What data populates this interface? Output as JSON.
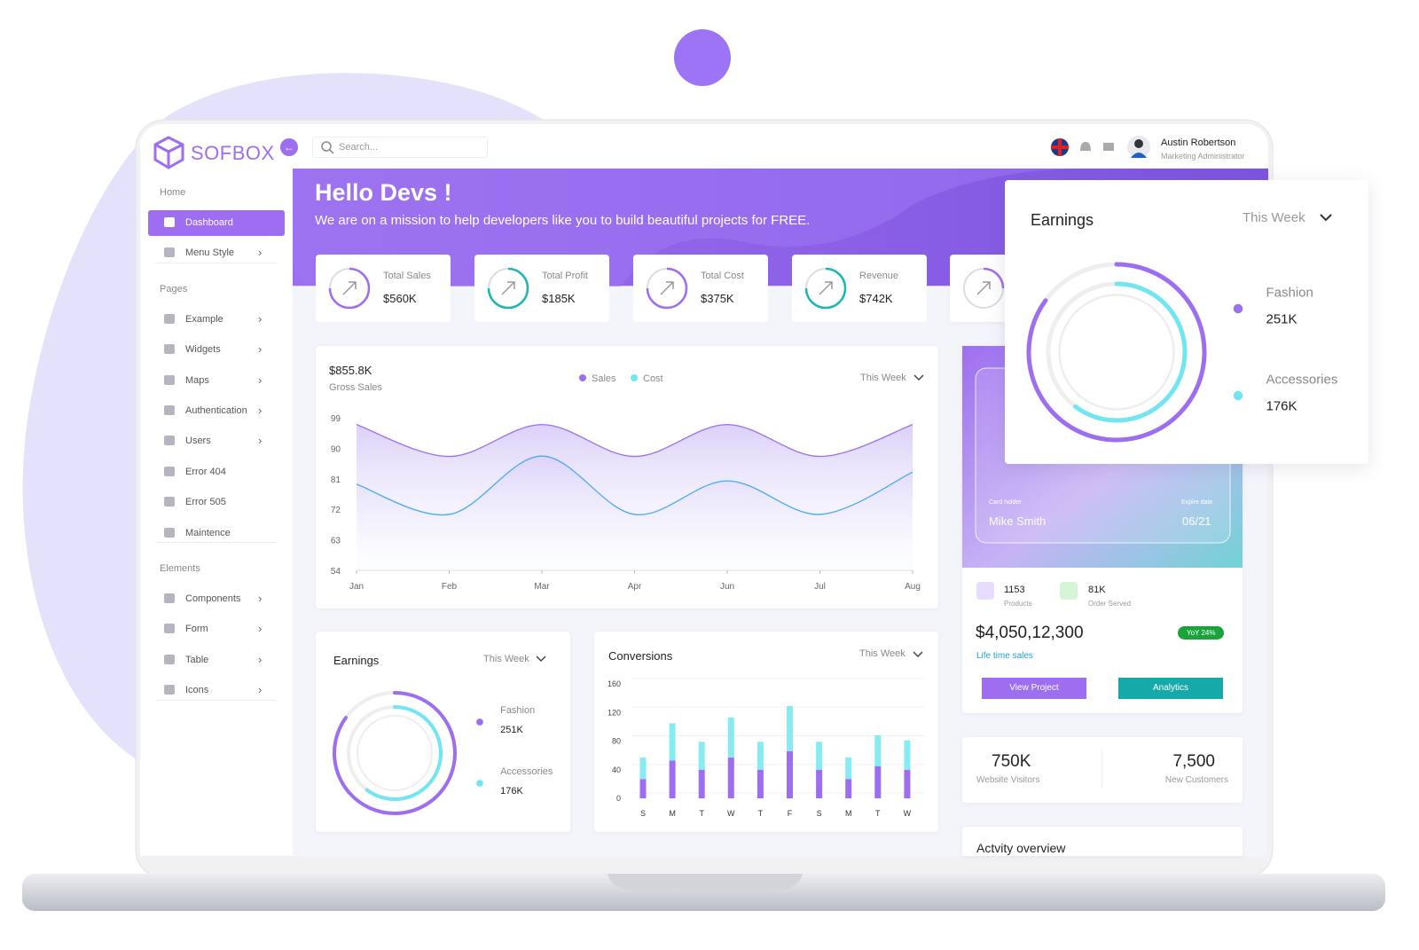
{
  "brand": "SOFBOX",
  "search_placeholder": "Search...",
  "user": {
    "name": "Austin Robertson",
    "role": "Marketing Administrator"
  },
  "sidebar": [
    {
      "heading": "Home",
      "items": [
        {
          "label": "Dashboard",
          "active": true
        },
        {
          "label": "Menu Style",
          "submenu": true
        }
      ]
    },
    {
      "heading": "Pages",
      "items": [
        {
          "label": "Example",
          "submenu": true
        },
        {
          "label": "Widgets",
          "submenu": true
        },
        {
          "label": "Maps",
          "submenu": true
        },
        {
          "label": "Authentication",
          "submenu": true
        },
        {
          "label": "Users",
          "submenu": true
        },
        {
          "label": "Error 404"
        },
        {
          "label": "Error 505"
        },
        {
          "label": "Maintence"
        }
      ]
    },
    {
      "heading": "Elements",
      "items": [
        {
          "label": "Components",
          "submenu": true
        },
        {
          "label": "Form",
          "submenu": true
        },
        {
          "label": "Table",
          "submenu": true
        },
        {
          "label": "Icons",
          "submenu": true
        }
      ]
    }
  ],
  "banner": {
    "title": "Hello Devs !",
    "subtitle": "We are on a mission to help developers like you to build beautiful projects for FREE."
  },
  "stat_cards": [
    {
      "label": "Total Sales",
      "value": "$560K",
      "color": "#9d6ff0"
    },
    {
      "label": "Total Profit",
      "value": "$185K",
      "color": "#1fb5b5"
    },
    {
      "label": "Total Cost",
      "value": "$375K",
      "color": "#9d6ff0"
    },
    {
      "label": "Revenue",
      "value": "$742K",
      "color": "#1fb5b5"
    }
  ],
  "gross_sales_chart": {
    "type": "line",
    "value": "$855.8K",
    "value_label": "Gross Sales",
    "period": "This Week",
    "categories": [
      "Jan",
      "Feb",
      "Mar",
      "Apr",
      "Jun",
      "Jul",
      "Aug"
    ],
    "series": [
      {
        "name": "Sales",
        "color": "#9d6ff0",
        "values": [
          97,
          87.6,
          97,
          87.6,
          97,
          87.6,
          97
        ]
      },
      {
        "name": "Cost",
        "color": "#4aa8f2",
        "values": [
          79.4,
          70.5,
          87.7,
          70.5,
          80.4,
          70.5,
          83
        ]
      }
    ],
    "ylim": [
      54,
      99
    ],
    "yticks": [
      54,
      63,
      72,
      81,
      90,
      99
    ]
  },
  "earnings_chart": {
    "type": "donut",
    "title": "Earnings",
    "period": "This Week",
    "categories": [
      "Fashion",
      "Accessories"
    ],
    "values": [
      251000,
      176000
    ],
    "value_labels": [
      "251K",
      "176K"
    ],
    "colors": [
      "#9d6ff0",
      "#72e6f0"
    ]
  },
  "conversions_chart": {
    "type": "bar",
    "stacked": true,
    "title": "Conversions",
    "period": "This Week",
    "categories": [
      "S",
      "M",
      "T",
      "W",
      "T",
      "F",
      "S",
      "M",
      "T",
      "W"
    ],
    "series": [
      {
        "color": "#9d6ff0",
        "values": [
          27,
          53,
          40,
          57,
          40,
          66,
          40,
          27,
          45,
          40
        ]
      },
      {
        "color": "#86ecf2",
        "values": [
          30,
          52,
          39,
          56,
          39,
          63,
          39,
          30,
          43,
          41
        ]
      }
    ],
    "ylim": [
      0,
      160
    ],
    "yticks": [
      0,
      40,
      80,
      120,
      160
    ]
  },
  "card": {
    "holder_label": "Card holder",
    "holder": "Mike Smith",
    "expire_label": "Expire date",
    "expire": "06/21"
  },
  "account": {
    "products": {
      "value": "1153",
      "label": "Products"
    },
    "orders": {
      "value": "81K",
      "label": "Order Served"
    },
    "lifetime_sales": "$4,050,12,300",
    "lifetime_label": "Life time sales",
    "yoy": "YoY 24%",
    "buttons": [
      "View Project",
      "Analytics"
    ]
  },
  "visitors": [
    {
      "value": "750K",
      "label": "Website Visitors"
    },
    {
      "value": "7,500",
      "label": "New Customers"
    }
  ],
  "activity_title": "Actvity overview"
}
